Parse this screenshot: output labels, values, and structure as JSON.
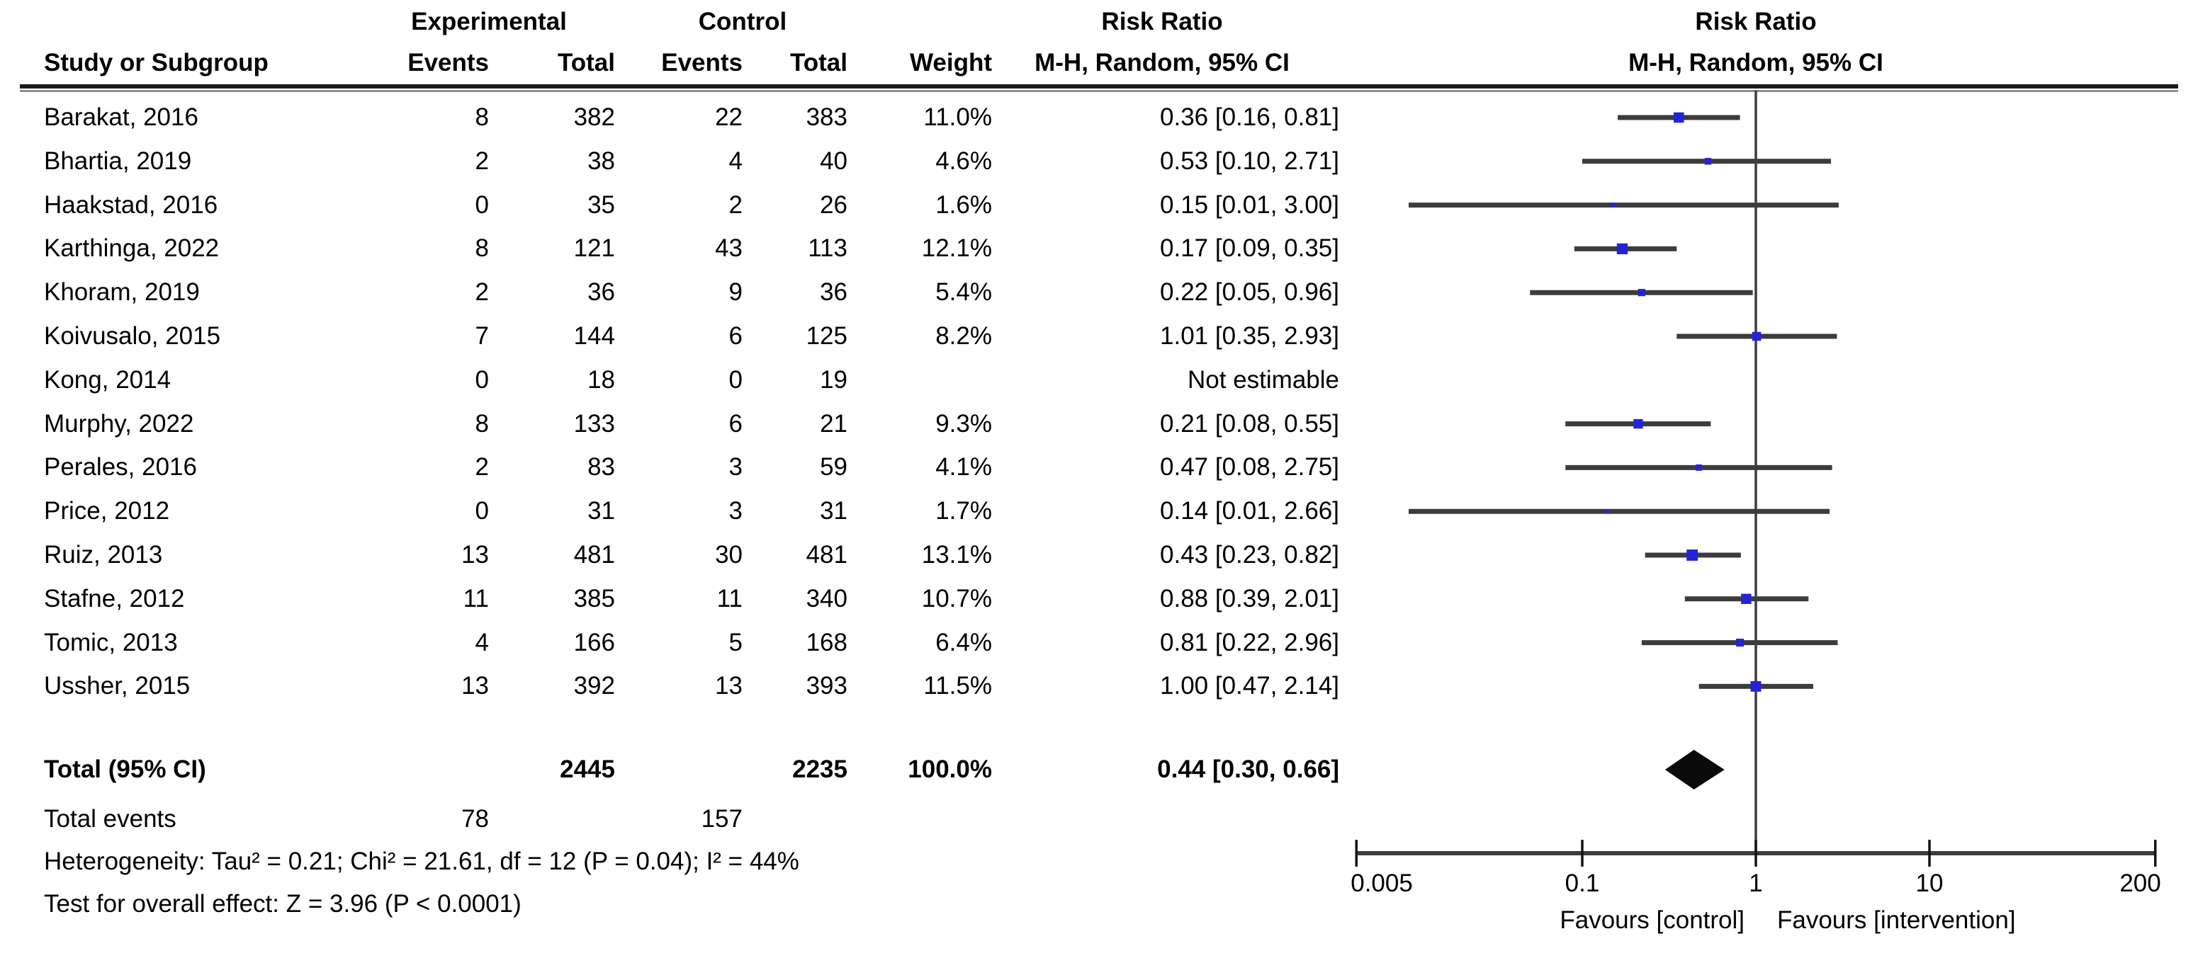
{
  "table": {
    "group_headers": {
      "experimental": "Experimental",
      "control": "Control",
      "risk_ratio_text": "Risk Ratio",
      "risk_ratio_plot": "Risk Ratio"
    },
    "column_headers": {
      "study": "Study or Subgroup",
      "exp_events": "Events",
      "exp_total": "Total",
      "ctrl_events": "Events",
      "ctrl_total": "Total",
      "weight": "Weight",
      "mh_text": "M-H, Random, 95% CI",
      "mh_plot": "M-H, Random, 95% CI"
    },
    "total_row": {
      "label": "Total (95% CI)",
      "exp_total": "2445",
      "ctrl_total": "2235",
      "weight": "100.0%",
      "ci_label": "0.44 [0.30, 0.66]"
    },
    "total_events": {
      "label": "Total events",
      "exp": "78",
      "ctrl": "157"
    },
    "heterogeneity": "Heterogeneity: Tau² = 0.21; Chi² = 21.61, df = 12 (P = 0.04); I² = 44%",
    "overall_effect": "Test for overall effect: Z = 3.96 (P < 0.0001)"
  },
  "plot": {
    "tick_labels": [
      "0.005",
      "0.1",
      "1",
      "10",
      "200"
    ],
    "favours_left": "Favours [control]",
    "favours_right": "Favours [intervention]",
    "not_estimable_label": "Not estimable",
    "colors": {
      "square": "#2424d6",
      "ci_line": "#3c3c3c",
      "diamond": "#0a0a0a",
      "axis": "#3c3c3c",
      "tick": "#141414",
      "text": "#000000"
    }
  },
  "chart_data": {
    "type": "scatter",
    "subtype": "forest_plot",
    "effect_measure": "Risk Ratio, M-H, Random, 95% CI",
    "x_scale": "log",
    "x_range": [
      0.005,
      200
    ],
    "x_ticks": [
      0.005,
      0.1,
      1,
      10,
      200
    ],
    "axis_labels": {
      "left": "Favours [control]",
      "right": "Favours [intervention]"
    },
    "studies": [
      {
        "name": "Barakat, 2016",
        "exp_events": "8",
        "exp_total": "382",
        "ctrl_events": "22",
        "ctrl_total": "383",
        "weight": "11.0%",
        "weight_pct": 11.0,
        "rr": 0.36,
        "ci_low": 0.16,
        "ci_high": 0.81,
        "ci_label": "0.36 [0.16, 0.81]",
        "estimable": true
      },
      {
        "name": "Bhartia, 2019",
        "exp_events": "2",
        "exp_total": "38",
        "ctrl_events": "4",
        "ctrl_total": "40",
        "weight": "4.6%",
        "weight_pct": 4.6,
        "rr": 0.53,
        "ci_low": 0.1,
        "ci_high": 2.71,
        "ci_label": "0.53 [0.10, 2.71]",
        "estimable": true
      },
      {
        "name": "Haakstad, 2016",
        "exp_events": "0",
        "exp_total": "35",
        "ctrl_events": "2",
        "ctrl_total": "26",
        "weight": "1.6%",
        "weight_pct": 1.6,
        "rr": 0.15,
        "ci_low": 0.01,
        "ci_high": 3.0,
        "ci_label": "0.15 [0.01, 3.00]",
        "estimable": true
      },
      {
        "name": "Karthinga, 2022",
        "exp_events": "8",
        "exp_total": "121",
        "ctrl_events": "43",
        "ctrl_total": "113",
        "weight": "12.1%",
        "weight_pct": 12.1,
        "rr": 0.17,
        "ci_low": 0.09,
        "ci_high": 0.35,
        "ci_label": "0.17 [0.09, 0.35]",
        "estimable": true
      },
      {
        "name": "Khoram, 2019",
        "exp_events": "2",
        "exp_total": "36",
        "ctrl_events": "9",
        "ctrl_total": "36",
        "weight": "5.4%",
        "weight_pct": 5.4,
        "rr": 0.22,
        "ci_low": 0.05,
        "ci_high": 0.96,
        "ci_label": "0.22 [0.05, 0.96]",
        "estimable": true
      },
      {
        "name": "Koivusalo, 2015",
        "exp_events": "7",
        "exp_total": "144",
        "ctrl_events": "6",
        "ctrl_total": "125",
        "weight": "8.2%",
        "weight_pct": 8.2,
        "rr": 1.01,
        "ci_low": 0.35,
        "ci_high": 2.93,
        "ci_label": "1.01 [0.35, 2.93]",
        "estimable": true
      },
      {
        "name": "Kong, 2014",
        "exp_events": "0",
        "exp_total": "18",
        "ctrl_events": "0",
        "ctrl_total": "19",
        "weight": "",
        "weight_pct": 0,
        "rr": null,
        "ci_low": null,
        "ci_high": null,
        "ci_label": "Not estimable",
        "estimable": false
      },
      {
        "name": "Murphy, 2022",
        "exp_events": "8",
        "exp_total": "133",
        "ctrl_events": "6",
        "ctrl_total": "21",
        "weight": "9.3%",
        "weight_pct": 9.3,
        "rr": 0.21,
        "ci_low": 0.08,
        "ci_high": 0.55,
        "ci_label": "0.21 [0.08, 0.55]",
        "estimable": true
      },
      {
        "name": "Perales, 2016",
        "exp_events": "2",
        "exp_total": "83",
        "ctrl_events": "3",
        "ctrl_total": "59",
        "weight": "4.1%",
        "weight_pct": 4.1,
        "rr": 0.47,
        "ci_low": 0.08,
        "ci_high": 2.75,
        "ci_label": "0.47 [0.08, 2.75]",
        "estimable": true
      },
      {
        "name": "Price, 2012",
        "exp_events": "0",
        "exp_total": "31",
        "ctrl_events": "3",
        "ctrl_total": "31",
        "weight": "1.7%",
        "weight_pct": 1.7,
        "rr": 0.14,
        "ci_low": 0.01,
        "ci_high": 2.66,
        "ci_label": "0.14 [0.01, 2.66]",
        "estimable": true
      },
      {
        "name": "Ruiz, 2013",
        "exp_events": "13",
        "exp_total": "481",
        "ctrl_events": "30",
        "ctrl_total": "481",
        "weight": "13.1%",
        "weight_pct": 13.1,
        "rr": 0.43,
        "ci_low": 0.23,
        "ci_high": 0.82,
        "ci_label": "0.43 [0.23, 0.82]",
        "estimable": true
      },
      {
        "name": "Stafne, 2012",
        "exp_events": "11",
        "exp_total": "385",
        "ctrl_events": "11",
        "ctrl_total": "340",
        "weight": "10.7%",
        "weight_pct": 10.7,
        "rr": 0.88,
        "ci_low": 0.39,
        "ci_high": 2.01,
        "ci_label": "0.88 [0.39, 2.01]",
        "estimable": true
      },
      {
        "name": "Tomic, 2013",
        "exp_events": "4",
        "exp_total": "166",
        "ctrl_events": "5",
        "ctrl_total": "168",
        "weight": "6.4%",
        "weight_pct": 6.4,
        "rr": 0.81,
        "ci_low": 0.22,
        "ci_high": 2.96,
        "ci_label": "0.81 [0.22, 2.96]",
        "estimable": true
      },
      {
        "name": "Ussher, 2015",
        "exp_events": "13",
        "exp_total": "392",
        "ctrl_events": "13",
        "ctrl_total": "393",
        "weight": "11.5%",
        "weight_pct": 11.5,
        "rr": 1.0,
        "ci_low": 0.47,
        "ci_high": 2.14,
        "ci_label": "1.00 [0.47, 2.14]",
        "estimable": true
      }
    ],
    "total": {
      "rr": 0.44,
      "ci_low": 0.3,
      "ci_high": 0.66,
      "weight_pct": 100.0
    }
  }
}
